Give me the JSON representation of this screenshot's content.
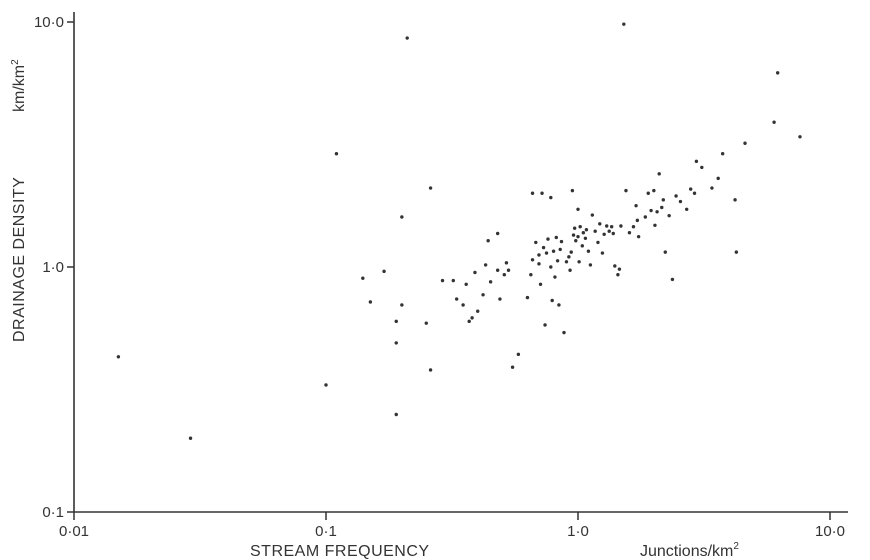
{
  "chart_data": {
    "type": "scatter",
    "xscale": "log",
    "yscale": "log",
    "xlim": [
      0.01,
      10.0
    ],
    "ylim": [
      0.1,
      10.0
    ],
    "xlabel": "STREAM  FREQUENCY",
    "xunit": "Junctions/km",
    "xunit_sup": "2",
    "ylabel": "DRAINAGE  DENSITY",
    "yunit": "km/km",
    "yunit_sup": "2",
    "x_ticks": [
      {
        "value": 0.01,
        "label": "0·01"
      },
      {
        "value": 0.1,
        "label": "0·1"
      },
      {
        "value": 1.0,
        "label": "1·0"
      },
      {
        "value": 10.0,
        "label": "10·0"
      }
    ],
    "y_ticks": [
      {
        "value": 0.1,
        "label": "0·1"
      },
      {
        "value": 1.0,
        "label": "1·0"
      },
      {
        "value": 10.0,
        "label": "10·0"
      }
    ],
    "grid": false,
    "points": [
      [
        0.015,
        0.43
      ],
      [
        0.029,
        0.2
      ],
      [
        0.1,
        0.33
      ],
      [
        0.11,
        2.9
      ],
      [
        0.14,
        0.9
      ],
      [
        0.15,
        0.72
      ],
      [
        0.17,
        0.96
      ],
      [
        0.19,
        0.6
      ],
      [
        0.19,
        0.49
      ],
      [
        0.19,
        0.25
      ],
      [
        0.2,
        1.6
      ],
      [
        0.2,
        0.7
      ],
      [
        0.21,
        8.6
      ],
      [
        0.25,
        0.59
      ],
      [
        0.26,
        0.38
      ],
      [
        0.26,
        2.1
      ],
      [
        0.29,
        0.88
      ],
      [
        0.32,
        0.88
      ],
      [
        0.33,
        0.74
      ],
      [
        0.35,
        0.7
      ],
      [
        0.36,
        0.85
      ],
      [
        0.37,
        0.6
      ],
      [
        0.38,
        0.62
      ],
      [
        0.39,
        0.95
      ],
      [
        0.4,
        0.66
      ],
      [
        0.42,
        0.77
      ],
      [
        0.43,
        1.02
      ],
      [
        0.44,
        1.28
      ],
      [
        0.45,
        0.87
      ],
      [
        0.48,
        0.97
      ],
      [
        0.48,
        1.37
      ],
      [
        0.49,
        0.74
      ],
      [
        0.51,
        0.93
      ],
      [
        0.52,
        1.04
      ],
      [
        0.53,
        0.97
      ],
      [
        0.55,
        0.39
      ],
      [
        0.58,
        0.44
      ],
      [
        0.63,
        0.75
      ],
      [
        0.65,
        0.93
      ],
      [
        0.66,
        2.0
      ],
      [
        0.66,
        1.07
      ],
      [
        0.68,
        1.26
      ],
      [
        0.7,
        1.03
      ],
      [
        0.7,
        1.12
      ],
      [
        0.71,
        0.85
      ],
      [
        0.72,
        2.0
      ],
      [
        0.73,
        1.2
      ],
      [
        0.74,
        0.58
      ],
      [
        0.75,
        1.14
      ],
      [
        0.76,
        1.3
      ],
      [
        0.78,
        1.92
      ],
      [
        0.78,
        1.0
      ],
      [
        0.79,
        0.73
      ],
      [
        0.8,
        1.16
      ],
      [
        0.81,
        0.91
      ],
      [
        0.82,
        1.32
      ],
      [
        0.83,
        1.06
      ],
      [
        0.84,
        0.7
      ],
      [
        0.85,
        1.18
      ],
      [
        0.86,
        1.27
      ],
      [
        0.88,
        0.54
      ],
      [
        0.9,
        1.05
      ],
      [
        0.92,
        1.1
      ],
      [
        0.93,
        0.97
      ],
      [
        0.94,
        1.15
      ],
      [
        0.95,
        2.05
      ],
      [
        0.96,
        1.35
      ],
      [
        0.97,
        1.44
      ],
      [
        0.98,
        1.28
      ],
      [
        1.0,
        1.72
      ],
      [
        1.0,
        1.33
      ],
      [
        1.01,
        1.05
      ],
      [
        1.02,
        1.46
      ],
      [
        1.04,
        1.22
      ],
      [
        1.05,
        1.38
      ],
      [
        1.07,
        1.31
      ],
      [
        1.08,
        1.42
      ],
      [
        1.1,
        1.16
      ],
      [
        1.12,
        1.02
      ],
      [
        1.14,
        1.63
      ],
      [
        1.17,
        1.4
      ],
      [
        1.2,
        1.26
      ],
      [
        1.22,
        1.5
      ],
      [
        1.25,
        1.14
      ],
      [
        1.27,
        1.36
      ],
      [
        1.3,
        1.47
      ],
      [
        1.33,
        1.4
      ],
      [
        1.36,
        1.46
      ],
      [
        1.38,
        1.37
      ],
      [
        1.4,
        1.01
      ],
      [
        1.44,
        0.93
      ],
      [
        1.46,
        0.98
      ],
      [
        1.48,
        1.47
      ],
      [
        1.52,
        9.8
      ],
      [
        1.55,
        2.05
      ],
      [
        1.6,
        1.38
      ],
      [
        1.66,
        1.46
      ],
      [
        1.7,
        1.78
      ],
      [
        1.72,
        1.55
      ],
      [
        1.74,
        1.33
      ],
      [
        1.85,
        1.6
      ],
      [
        1.9,
        2.0
      ],
      [
        1.95,
        1.7
      ],
      [
        2.0,
        2.05
      ],
      [
        2.02,
        1.48
      ],
      [
        2.06,
        1.68
      ],
      [
        2.1,
        2.4
      ],
      [
        2.15,
        1.75
      ],
      [
        2.18,
        1.88
      ],
      [
        2.22,
        1.15
      ],
      [
        2.3,
        1.62
      ],
      [
        2.37,
        0.89
      ],
      [
        2.45,
        1.95
      ],
      [
        2.55,
        1.85
      ],
      [
        2.7,
        1.72
      ],
      [
        2.8,
        2.08
      ],
      [
        2.9,
        2.0
      ],
      [
        2.95,
        2.7
      ],
      [
        3.1,
        2.55
      ],
      [
        3.4,
        2.1
      ],
      [
        3.6,
        2.3
      ],
      [
        3.75,
        2.9
      ],
      [
        4.2,
        1.88
      ],
      [
        4.25,
        1.15
      ],
      [
        4.6,
        3.2
      ],
      [
        6.0,
        3.9
      ],
      [
        6.2,
        6.2
      ],
      [
        7.6,
        3.4
      ]
    ]
  }
}
